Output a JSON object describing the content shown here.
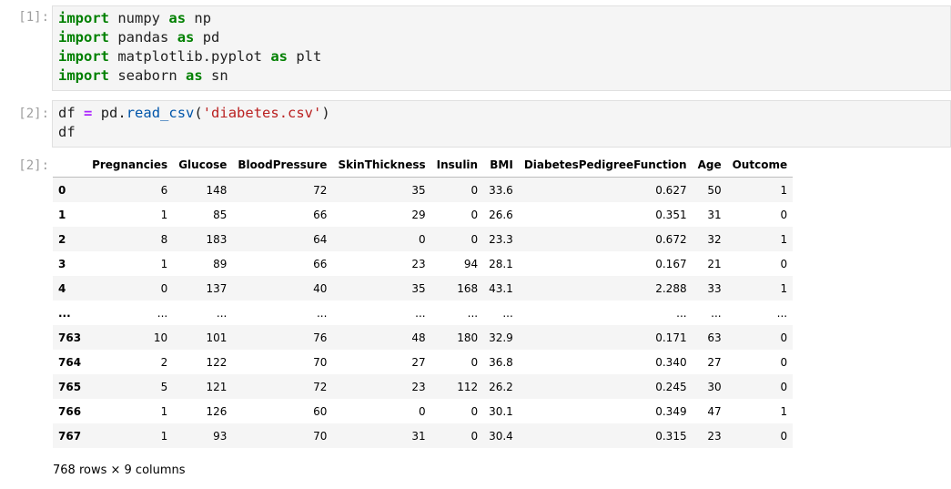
{
  "cells": [
    {
      "prompt": "[1]:",
      "lines": [
        [
          "import",
          "numpy",
          "as",
          "np"
        ],
        [
          "import",
          "pandas",
          "as",
          "pd"
        ],
        [
          "import",
          "matplotlib.pyplot",
          "as",
          "plt"
        ],
        [
          "import",
          "seaborn",
          "as",
          "sn"
        ]
      ]
    },
    {
      "prompt": "[2]:",
      "code": {
        "var": "df",
        "op": "=",
        "obj": "pd.",
        "fn": "read_csv",
        "open": "(",
        "str": "'diabetes.csv'",
        "close": ")",
        "line2": "df"
      }
    }
  ],
  "output": {
    "prompt": "[2]:",
    "columns": [
      "Pregnancies",
      "Glucose",
      "BloodPressure",
      "SkinThickness",
      "Insulin",
      "BMI",
      "DiabetesPedigreeFunction",
      "Age",
      "Outcome"
    ],
    "rows": [
      [
        "0",
        "6",
        "148",
        "72",
        "35",
        "0",
        "33.6",
        "0.627",
        "50",
        "1"
      ],
      [
        "1",
        "1",
        "85",
        "66",
        "29",
        "0",
        "26.6",
        "0.351",
        "31",
        "0"
      ],
      [
        "2",
        "8",
        "183",
        "64",
        "0",
        "0",
        "23.3",
        "0.672",
        "32",
        "1"
      ],
      [
        "3",
        "1",
        "89",
        "66",
        "23",
        "94",
        "28.1",
        "0.167",
        "21",
        "0"
      ],
      [
        "4",
        "0",
        "137",
        "40",
        "35",
        "168",
        "43.1",
        "2.288",
        "33",
        "1"
      ],
      [
        "...",
        "...",
        "...",
        "...",
        "...",
        "...",
        "...",
        "...",
        "...",
        "..."
      ],
      [
        "763",
        "10",
        "101",
        "76",
        "48",
        "180",
        "32.9",
        "0.171",
        "63",
        "0"
      ],
      [
        "764",
        "2",
        "122",
        "70",
        "27",
        "0",
        "36.8",
        "0.340",
        "27",
        "0"
      ],
      [
        "765",
        "5",
        "121",
        "72",
        "23",
        "112",
        "26.2",
        "0.245",
        "30",
        "0"
      ],
      [
        "766",
        "1",
        "126",
        "60",
        "0",
        "0",
        "30.1",
        "0.349",
        "47",
        "1"
      ],
      [
        "767",
        "1",
        "93",
        "70",
        "31",
        "0",
        "30.4",
        "0.315",
        "23",
        "0"
      ]
    ],
    "shape": "768 rows × 9 columns"
  }
}
